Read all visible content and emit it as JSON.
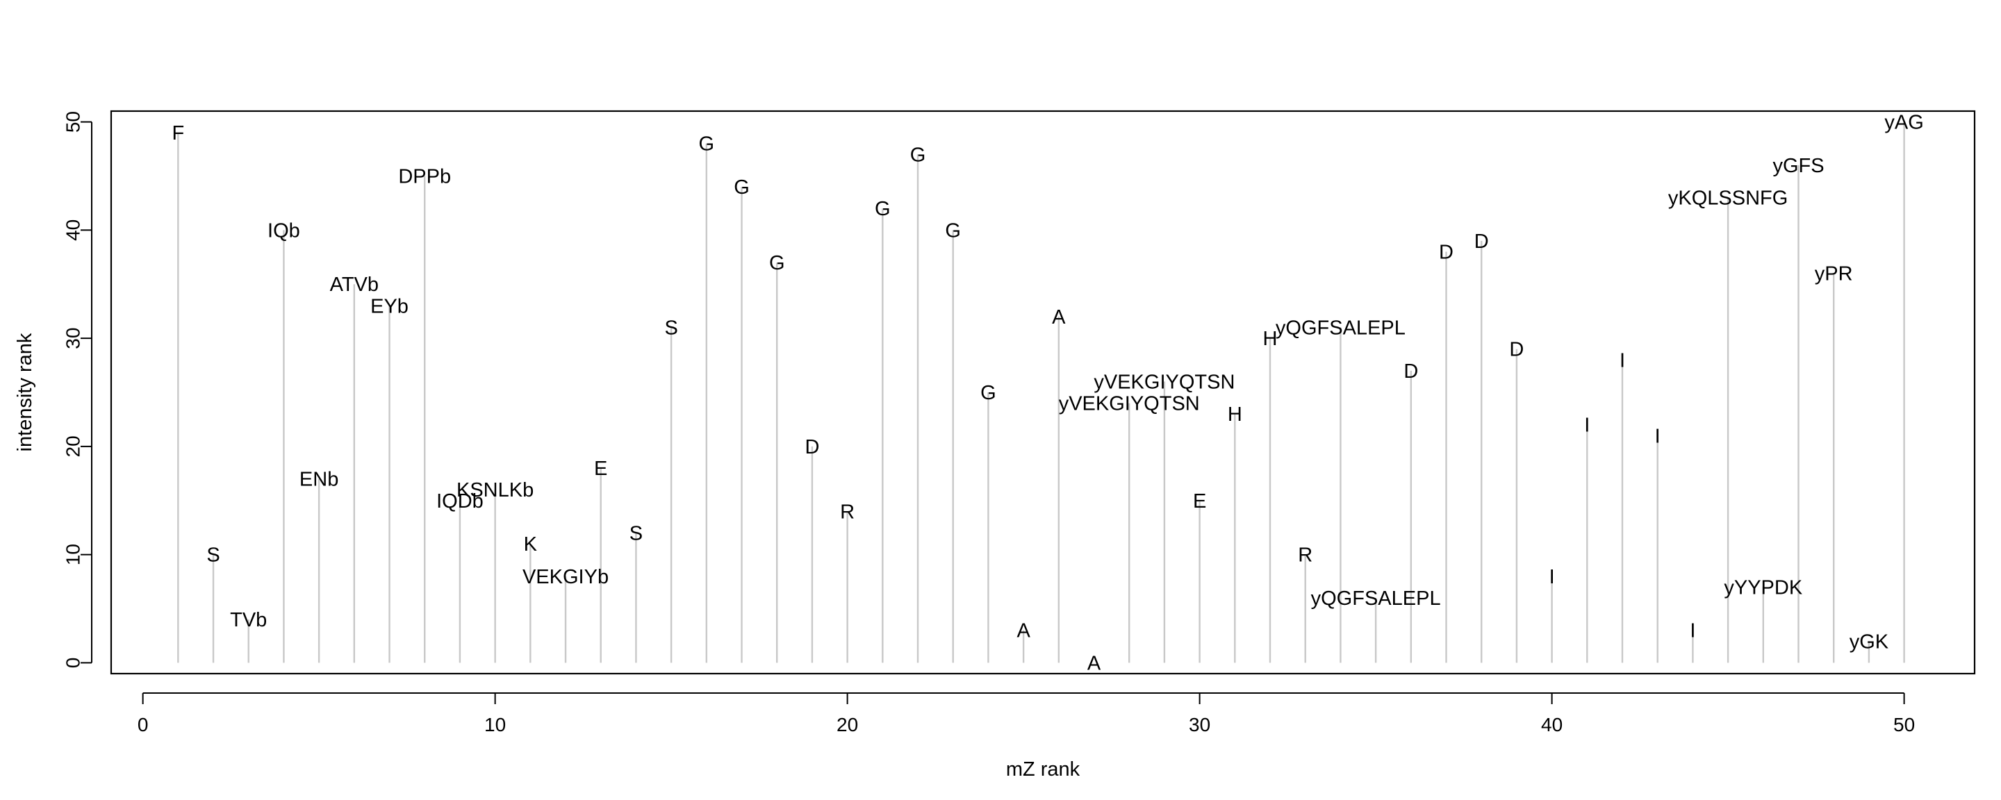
{
  "chart_data": {
    "type": "stem",
    "title": "",
    "xlabel": "mZ rank",
    "ylabel": "intensity rank",
    "xlim": [
      -0.9,
      52
    ],
    "ylim": [
      -1,
      51
    ],
    "x_ticks": [
      0,
      10,
      20,
      30,
      40,
      50
    ],
    "y_ticks": [
      0,
      10,
      20,
      30,
      40,
      50
    ],
    "grid": false,
    "legend": "none",
    "stem_color": "#c8c8c8",
    "points": [
      {
        "x": 1,
        "y": 49,
        "label": "F"
      },
      {
        "x": 2,
        "y": 10,
        "label": "S"
      },
      {
        "x": 3,
        "y": 4,
        "label": "TVb"
      },
      {
        "x": 4,
        "y": 40,
        "label": "IQb"
      },
      {
        "x": 5,
        "y": 17,
        "label": "ENb"
      },
      {
        "x": 6,
        "y": 35,
        "label": "ATVb"
      },
      {
        "x": 7,
        "y": 33,
        "label": "EYb"
      },
      {
        "x": 8,
        "y": 45,
        "label": "DPPb"
      },
      {
        "x": 9,
        "y": 15,
        "label": "IQDb"
      },
      {
        "x": 10,
        "y": 16,
        "label": "KSNLKb"
      },
      {
        "x": 11,
        "y": 11,
        "label": "K"
      },
      {
        "x": 12,
        "y": 8,
        "label": "VEKGIYb"
      },
      {
        "x": 13,
        "y": 18,
        "label": "E"
      },
      {
        "x": 14,
        "y": 12,
        "label": "S"
      },
      {
        "x": 15,
        "y": 31,
        "label": "S"
      },
      {
        "x": 16,
        "y": 48,
        "label": "G"
      },
      {
        "x": 17,
        "y": 44,
        "label": "G"
      },
      {
        "x": 18,
        "y": 37,
        "label": "G"
      },
      {
        "x": 19,
        "y": 20,
        "label": "D"
      },
      {
        "x": 20,
        "y": 14,
        "label": "R"
      },
      {
        "x": 21,
        "y": 42,
        "label": "G"
      },
      {
        "x": 22,
        "y": 47,
        "label": "G"
      },
      {
        "x": 23,
        "y": 40,
        "label": "G"
      },
      {
        "x": 24,
        "y": 25,
        "label": "G"
      },
      {
        "x": 25,
        "y": 3,
        "label": "A"
      },
      {
        "x": 26,
        "y": 32,
        "label": "A"
      },
      {
        "x": 27,
        "y": 0,
        "label": "A"
      },
      {
        "x": 28,
        "y": 24,
        "label": "yVEKGIYQTSN"
      },
      {
        "x": 29,
        "y": 26,
        "label": "yVEKGIYQTSN"
      },
      {
        "x": 30,
        "y": 15,
        "label": "E"
      },
      {
        "x": 31,
        "y": 23,
        "label": "H"
      },
      {
        "x": 32,
        "y": 30,
        "label": "H"
      },
      {
        "x": 33,
        "y": 10,
        "label": "R"
      },
      {
        "x": 34,
        "y": 31,
        "label": "yQGFSALEPL"
      },
      {
        "x": 35,
        "y": 6,
        "label": "yQGFSALEPL"
      },
      {
        "x": 36,
        "y": 27,
        "label": "D"
      },
      {
        "x": 37,
        "y": 38,
        "label": "D"
      },
      {
        "x": 38,
        "y": 39,
        "label": "D"
      },
      {
        "x": 39,
        "y": 29,
        "label": "D"
      },
      {
        "x": 40,
        "y": 8,
        "label": "I"
      },
      {
        "x": 41,
        "y": 22,
        "label": "I"
      },
      {
        "x": 42,
        "y": 28,
        "label": "I"
      },
      {
        "x": 43,
        "y": 21,
        "label": "I"
      },
      {
        "x": 44,
        "y": 3,
        "label": "I"
      },
      {
        "x": 45,
        "y": 43,
        "label": "yKQLSSNFG"
      },
      {
        "x": 46,
        "y": 7,
        "label": "yYYPDK"
      },
      {
        "x": 47,
        "y": 46,
        "label": "yGFS"
      },
      {
        "x": 48,
        "y": 36,
        "label": "yPR"
      },
      {
        "x": 49,
        "y": 2,
        "label": "yGK"
      },
      {
        "x": 50,
        "y": 50,
        "label": "yAG"
      }
    ]
  }
}
